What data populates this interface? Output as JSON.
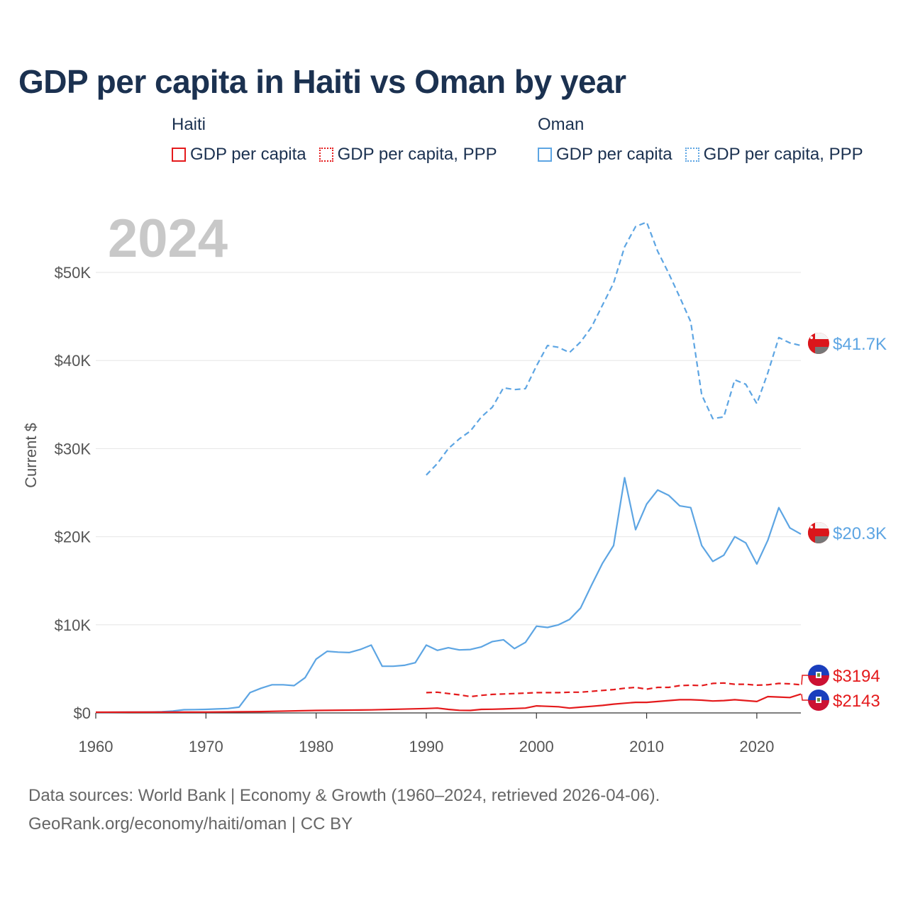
{
  "title": "GDP per capita in Haiti vs Oman by year",
  "legend": {
    "haiti": {
      "title": "Haiti",
      "gdp_label": "GDP per capita",
      "ppp_label": "GDP per capita, PPP",
      "color": "#e41a1c"
    },
    "oman": {
      "title": "Oman",
      "gdp_label": "GDP per capita",
      "ppp_label": "GDP per capita, PPP",
      "color": "#5da5e3"
    }
  },
  "year_watermark": "2024",
  "end_labels": {
    "oman_ppp": "$41.7K",
    "oman_gdp": "$20.3K",
    "haiti_ppp": "$3194",
    "haiti_gdp": "$2143"
  },
  "flags": {
    "oman": {
      "top": "#f4f4f4",
      "band": "#db161b",
      "bottom": "#777777"
    },
    "haiti": {
      "top": "#1a3ebd",
      "bottom": "#cc1133",
      "center": "#ffffff"
    }
  },
  "source": {
    "line1": "Data sources: World Bank | Economy & Growth (1960–2024, retrieved 2026-04-06).",
    "line2": "GeoRank.org/economy/haiti/oman | CC BY"
  },
  "chart_data": {
    "type": "line",
    "ylabel": "Current $",
    "xlim": [
      1960,
      2024
    ],
    "ylim": [
      0,
      55000
    ],
    "y_ticks": [
      0,
      10000,
      20000,
      30000,
      40000,
      50000
    ],
    "y_tick_labels": [
      "$0",
      "$10K",
      "$20K",
      "$30K",
      "$40K",
      "$50K"
    ],
    "x_ticks": [
      1960,
      1970,
      1980,
      1990,
      2000,
      2010,
      2020
    ],
    "x_tick_labels": [
      "1960",
      "1970",
      "1980",
      "1990",
      "2000",
      "2010",
      "2020"
    ],
    "grid": true,
    "series": [
      {
        "name": "Oman GDP per capita, PPP",
        "country": "Oman",
        "style": "dashed",
        "color": "#5da5e3",
        "x": [
          1990,
          1991,
          1992,
          1993,
          1994,
          1995,
          1996,
          1997,
          1998,
          1999,
          2000,
          2001,
          2002,
          2003,
          2004,
          2005,
          2006,
          2007,
          2008,
          2009,
          2010,
          2011,
          2012,
          2013,
          2014,
          2015,
          2016,
          2017,
          2018,
          2019,
          2020,
          2021,
          2022,
          2023,
          2024
        ],
        "y": [
          27000,
          28300,
          30000,
          31100,
          32000,
          33600,
          34700,
          36900,
          36700,
          36800,
          39400,
          41700,
          41500,
          40900,
          42100,
          43800,
          46300,
          48800,
          52900,
          55200,
          55700,
          52400,
          49900,
          47200,
          44400,
          36100,
          33400,
          33600,
          37800,
          37300,
          35100,
          38600,
          42600,
          42000,
          41700
        ]
      },
      {
        "name": "Oman GDP per capita",
        "country": "Oman",
        "style": "solid",
        "color": "#5da5e3",
        "x": [
          1960,
          1961,
          1962,
          1963,
          1964,
          1965,
          1966,
          1967,
          1968,
          1969,
          1970,
          1971,
          1972,
          1973,
          1974,
          1975,
          1976,
          1977,
          1978,
          1979,
          1980,
          1981,
          1982,
          1983,
          1984,
          1985,
          1986,
          1987,
          1988,
          1989,
          1990,
          1991,
          1992,
          1993,
          1994,
          1995,
          1996,
          1997,
          1998,
          1999,
          2000,
          2001,
          2002,
          2003,
          2004,
          2005,
          2006,
          2007,
          2008,
          2009,
          2010,
          2011,
          2012,
          2013,
          2014,
          2015,
          2016,
          2017,
          2018,
          2019,
          2020,
          2021,
          2022,
          2023,
          2024
        ],
        "y": [
          70,
          75,
          80,
          85,
          95,
          105,
          140,
          220,
          360,
          380,
          400,
          450,
          500,
          650,
          2300,
          2800,
          3200,
          3200,
          3100,
          4000,
          6100,
          7000,
          6900,
          6850,
          7200,
          7700,
          5300,
          5300,
          5400,
          5700,
          7700,
          7100,
          7400,
          7150,
          7200,
          7500,
          8100,
          8300,
          7300,
          8000,
          9850,
          9700,
          10000,
          10600,
          11900,
          14500,
          17000,
          19000,
          26700,
          20800,
          23700,
          25300,
          24700,
          23500,
          23300,
          19000,
          17200,
          17900,
          20000,
          19300,
          16900,
          19600,
          23300,
          21000,
          20300
        ]
      },
      {
        "name": "Haiti GDP per capita, PPP",
        "country": "Haiti",
        "style": "dashed",
        "color": "#e41a1c",
        "x": [
          1990,
          1991,
          1992,
          1993,
          1994,
          1995,
          1996,
          1997,
          1998,
          1999,
          2000,
          2001,
          2002,
          2003,
          2004,
          2005,
          2006,
          2007,
          2008,
          2009,
          2010,
          2011,
          2012,
          2013,
          2014,
          2015,
          2016,
          2017,
          2018,
          2019,
          2020,
          2021,
          2022,
          2023,
          2024
        ],
        "y": [
          2300,
          2350,
          2200,
          2050,
          1850,
          2000,
          2100,
          2150,
          2200,
          2250,
          2300,
          2300,
          2300,
          2350,
          2350,
          2450,
          2550,
          2650,
          2800,
          2900,
          2700,
          2900,
          2900,
          3100,
          3150,
          3100,
          3350,
          3400,
          3250,
          3250,
          3150,
          3200,
          3350,
          3300,
          3194
        ]
      },
      {
        "name": "Haiti GDP per capita",
        "country": "Haiti",
        "style": "solid",
        "color": "#e41a1c",
        "x": [
          1960,
          1965,
          1970,
          1975,
          1980,
          1985,
          1990,
          1991,
          1992,
          1993,
          1994,
          1995,
          1996,
          1997,
          1998,
          1999,
          2000,
          2001,
          2002,
          2003,
          2004,
          2005,
          2006,
          2007,
          2008,
          2009,
          2010,
          2011,
          2012,
          2013,
          2014,
          2015,
          2016,
          2017,
          2018,
          2019,
          2020,
          2021,
          2022,
          2023,
          2024
        ],
        "y": [
          80,
          90,
          100,
          150,
          280,
          350,
          500,
          550,
          400,
          300,
          280,
          400,
          420,
          450,
          500,
          550,
          800,
          750,
          700,
          550,
          650,
          750,
          850,
          1000,
          1100,
          1200,
          1200,
          1300,
          1400,
          1500,
          1500,
          1450,
          1350,
          1400,
          1500,
          1400,
          1300,
          1850,
          1800,
          1750,
          2143
        ]
      }
    ]
  }
}
